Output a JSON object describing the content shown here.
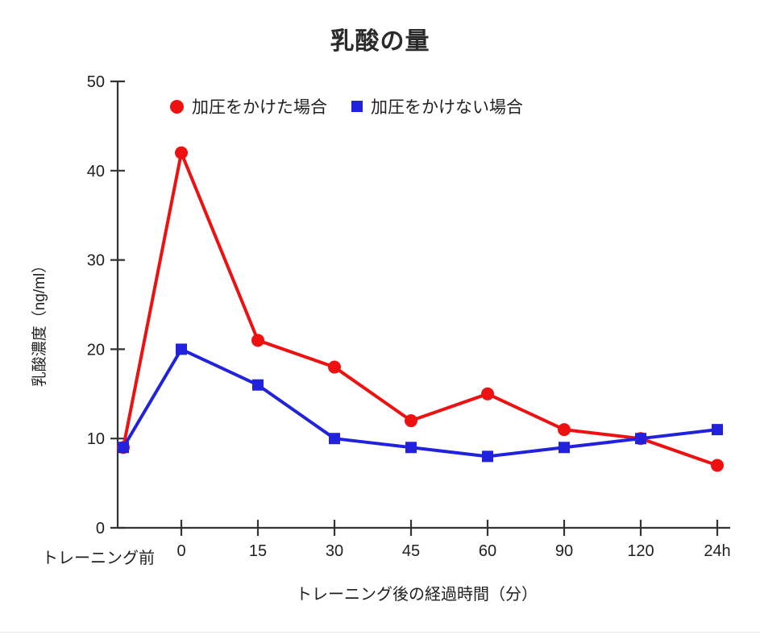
{
  "chart_data": {
    "type": "line",
    "title": "乳酸の量",
    "xlabel": "トレーニング後の経過時間（分）",
    "ylabel": "乳酸濃度（ng/ml）",
    "x_prefix_label": "トレーニング前",
    "categories": [
      "トレーニング前",
      "0",
      "15",
      "30",
      "45",
      "60",
      "90",
      "120",
      "24h"
    ],
    "y_ticks": [
      0,
      10,
      20,
      30,
      40,
      50
    ],
    "ylim": [
      0,
      50
    ],
    "grid": false,
    "legend_position": "top-inside",
    "axis_color": "#333333",
    "text_color": "#1f1f1f",
    "series": [
      {
        "name": "加圧をかけた場合",
        "marker": "circle",
        "color": "#ee1111",
        "values": [
          9,
          42,
          21,
          18,
          12,
          15,
          11,
          10,
          7
        ]
      },
      {
        "name": "加圧をかけない場合",
        "marker": "square",
        "color": "#2222dd",
        "values": [
          9,
          20,
          16,
          10,
          9,
          8,
          9,
          10,
          11
        ]
      }
    ]
  },
  "page": {
    "bottom_divider_color": "#e6e6e6"
  }
}
